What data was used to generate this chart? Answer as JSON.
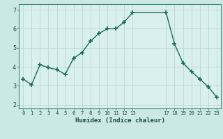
{
  "x": [
    0,
    1,
    2,
    3,
    4,
    5,
    6,
    7,
    8,
    9,
    10,
    11,
    12,
    13,
    17,
    18,
    19,
    20,
    21,
    22,
    23
  ],
  "y": [
    3.35,
    3.05,
    4.1,
    3.95,
    3.85,
    3.6,
    4.45,
    4.75,
    5.35,
    5.75,
    6.0,
    6.0,
    6.35,
    6.85,
    6.85,
    5.2,
    4.2,
    3.75,
    3.35,
    2.95,
    2.4
  ],
  "xticks": [
    0,
    1,
    2,
    3,
    4,
    5,
    6,
    7,
    8,
    9,
    10,
    11,
    12,
    13,
    17,
    18,
    19,
    20,
    21,
    22,
    23
  ],
  "xtick_labels": [
    "0",
    "1",
    "2",
    "3",
    "4",
    "5",
    "6",
    "7",
    "8",
    "9",
    "10",
    "11",
    "12",
    "13",
    "17",
    "18",
    "19",
    "20",
    "21",
    "22",
    "23"
  ],
  "yticks": [
    2,
    3,
    4,
    5,
    6,
    7
  ],
  "xlabel": "Humidex (Indice chaleur)",
  "xlim": [
    -0.5,
    23.5
  ],
  "ylim": [
    1.8,
    7.3
  ],
  "line_color": "#1a6b5a",
  "marker": "+",
  "marker_size": 4,
  "bg_color": "#cce8e5",
  "grid_color_major": "#b8d8d5",
  "grid_color_minor": "#daeeed",
  "axis_bg": "#daf0ee",
  "title": ""
}
